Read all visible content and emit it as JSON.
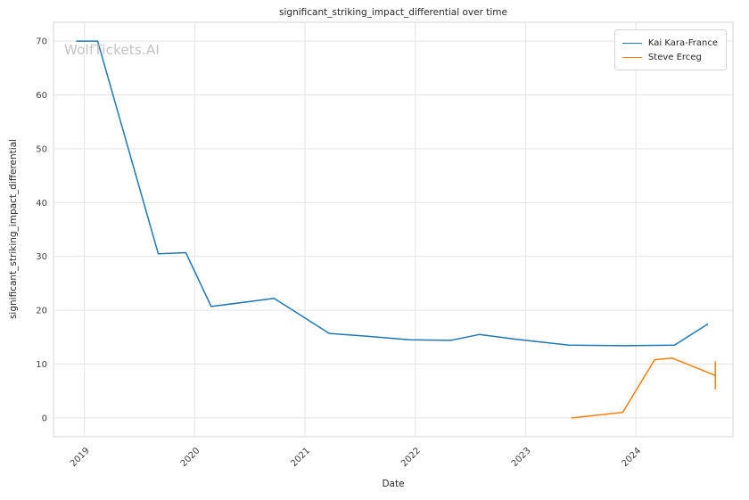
{
  "watermark": "WolfTickets.AI",
  "chart_data": {
    "type": "line",
    "title": "significant_striking_impact_differential over time",
    "xlabel": "Date",
    "ylabel": "significant_striking_impact_differential",
    "x_ticks": [
      2019,
      2020,
      2021,
      2022,
      2023,
      2024
    ],
    "y_ticks": [
      0,
      10,
      20,
      30,
      40,
      50,
      60,
      70
    ],
    "xlim": [
      2018.72,
      2024.88
    ],
    "ylim": [
      -3.5,
      73.5
    ],
    "grid": true,
    "legend_position": "upper right",
    "series": [
      {
        "name": "Kai Kara-France",
        "color": "#1f77b4",
        "points": [
          [
            2018.93,
            70
          ],
          [
            2019.12,
            70
          ],
          [
            2019.67,
            30.5
          ],
          [
            2019.92,
            30.7
          ],
          [
            2020.15,
            20.7
          ],
          [
            2020.72,
            22.2
          ],
          [
            2021.22,
            15.7
          ],
          [
            2021.55,
            15.2
          ],
          [
            2021.95,
            14.5
          ],
          [
            2022.32,
            14.4
          ],
          [
            2022.58,
            15.5
          ],
          [
            2022.92,
            14.6
          ],
          [
            2023.4,
            13.5
          ],
          [
            2023.9,
            13.4
          ],
          [
            2024.35,
            13.5
          ],
          [
            2024.65,
            17.4
          ]
        ]
      },
      {
        "name": "Steve Erceg",
        "color": "#ff7f0e",
        "points": [
          [
            2023.42,
            0
          ],
          [
            2023.88,
            1
          ],
          [
            2024.17,
            10.8
          ],
          [
            2024.33,
            11.1
          ],
          [
            2024.72,
            7.9
          ]
        ],
        "error_bar_last": 2.6
      }
    ]
  }
}
